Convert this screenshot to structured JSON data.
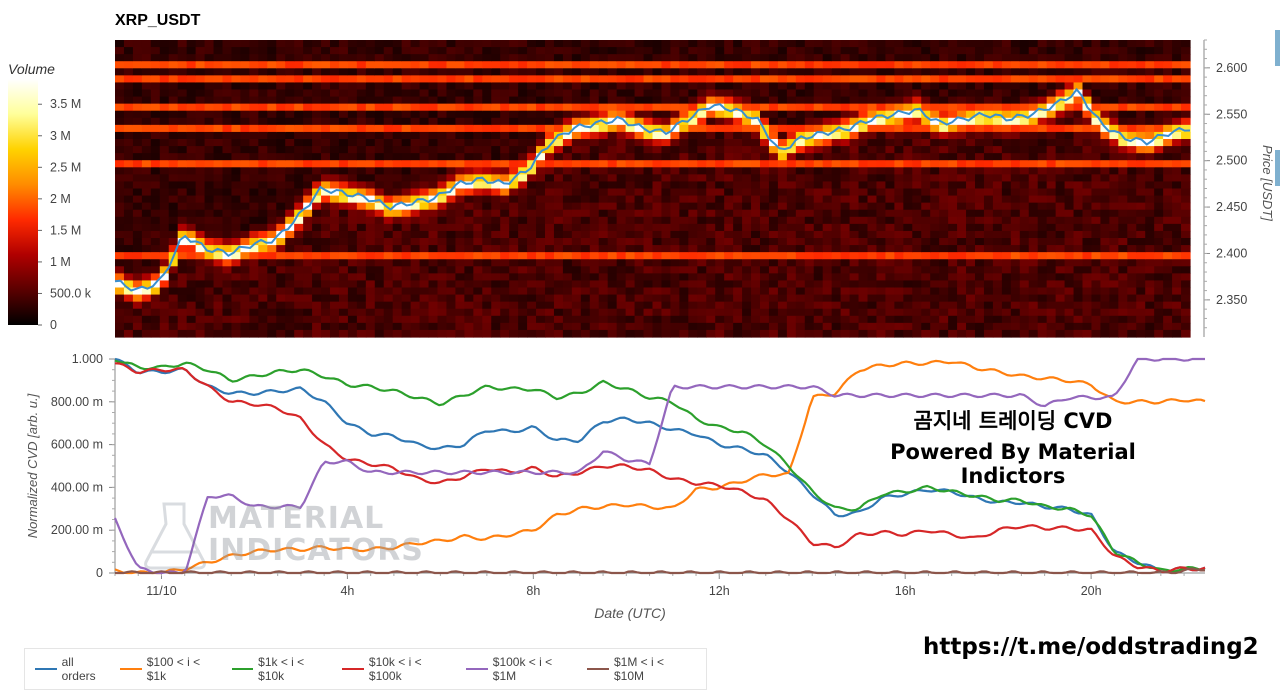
{
  "title": "XRP_USDT",
  "overlay": {
    "line1": "곰지네 트레이딩 CVD",
    "line2": "Powered By Material Indictors"
  },
  "link": "https://t.me/oddstrading2",
  "watermark": [
    "MATERIAL",
    "INDICATORS"
  ],
  "chart_data": [
    {
      "type": "heatmap",
      "title": "XRP_USDT",
      "colorbar": {
        "label": "Volume",
        "ticks": [
          "3.5 M",
          "3 M",
          "2.5 M",
          "2 M",
          "1.5 M",
          "1 M",
          "500.0 k",
          "0"
        ],
        "tick_values": [
          3500000,
          3000000,
          2500000,
          2000000,
          1500000,
          1000000,
          500000,
          0
        ],
        "range": [
          0,
          3900000
        ],
        "colors": [
          "#000000",
          "#5a0000",
          "#b00000",
          "#ff2a00",
          "#ff8c00",
          "#ffd200",
          "#ffff9a",
          "#ffffff"
        ]
      },
      "ylabel": "Price [USDT]",
      "yticks": [
        "2.600",
        "2.550",
        "2.500",
        "2.450",
        "2.400",
        "2.350"
      ],
      "ytick_values": [
        2.6,
        2.55,
        2.5,
        2.45,
        2.4,
        2.35
      ],
      "ylim": [
        2.31,
        2.63
      ],
      "xlim": [
        0,
        23.45
      ],
      "price_line": {
        "color": "#3a8fd0",
        "x": [
          0,
          0.5,
          1,
          1.5,
          2,
          2.5,
          3,
          3.5,
          4,
          4.5,
          5,
          5.5,
          6,
          6.5,
          7,
          7.5,
          8,
          8.5,
          9,
          9.5,
          10,
          10.5,
          11,
          11.5,
          12,
          12.5,
          13,
          13.5,
          14,
          14.5,
          15,
          15.5,
          16,
          16.5,
          17,
          17.5,
          18,
          18.5,
          19,
          19.5,
          20,
          20.5,
          21,
          21.5,
          22,
          22.5,
          23,
          23.45
        ],
        "y": [
          2.37,
          2.36,
          2.37,
          2.42,
          2.405,
          2.4,
          2.41,
          2.415,
          2.44,
          2.47,
          2.465,
          2.46,
          2.45,
          2.455,
          2.46,
          2.475,
          2.48,
          2.475,
          2.49,
          2.52,
          2.535,
          2.54,
          2.545,
          2.535,
          2.53,
          2.545,
          2.56,
          2.555,
          2.545,
          2.51,
          2.525,
          2.53,
          2.535,
          2.545,
          2.55,
          2.555,
          2.54,
          2.545,
          2.55,
          2.545,
          2.55,
          2.56,
          2.575,
          2.54,
          2.525,
          2.52,
          2.53,
          2.535
        ]
      },
      "strong_levels": [
        2.6,
        2.585,
        2.56,
        2.535,
        2.5,
        2.4
      ]
    },
    {
      "type": "line",
      "ylabel": "Normalized CVD [arb. u.]",
      "xlabel": "Date (UTC)",
      "categories_label": [
        "11/10",
        "4h",
        "8h",
        "12h",
        "16h",
        "20h"
      ],
      "xtick_values": [
        1,
        5,
        9,
        13,
        17,
        21
      ],
      "xlim": [
        0,
        23.45
      ],
      "yticks": [
        "1.000",
        "800.00 m",
        "600.00 m",
        "400.00 m",
        "200.00 m",
        "0"
      ],
      "ytick_values": [
        1.0,
        0.8,
        0.6,
        0.4,
        0.2,
        0
      ],
      "ylim": [
        0,
        1.0
      ],
      "x": [
        0,
        0.5,
        1,
        1.5,
        2,
        2.5,
        3,
        3.5,
        4,
        4.5,
        5,
        5.5,
        6,
        6.5,
        7,
        7.5,
        8,
        8.5,
        9,
        9.5,
        10,
        10.5,
        11,
        11.5,
        12,
        12.5,
        13,
        13.5,
        14,
        14.5,
        15,
        15.5,
        16,
        16.5,
        17,
        17.5,
        18,
        18.5,
        19,
        19.5,
        20,
        20.5,
        21,
        21.5,
        22,
        22.5,
        23,
        23.45
      ],
      "series": [
        {
          "name": "all orders",
          "color": "#2f77b4",
          "values": [
            1.0,
            0.94,
            0.94,
            0.95,
            0.87,
            0.84,
            0.84,
            0.85,
            0.86,
            0.8,
            0.7,
            0.65,
            0.64,
            0.6,
            0.58,
            0.6,
            0.67,
            0.66,
            0.68,
            0.62,
            0.62,
            0.71,
            0.72,
            0.7,
            0.67,
            0.65,
            0.6,
            0.58,
            0.55,
            0.47,
            0.37,
            0.27,
            0.28,
            0.35,
            0.37,
            0.39,
            0.38,
            0.35,
            0.33,
            0.33,
            0.31,
            0.3,
            0.27,
            0.1,
            0.05,
            0.01,
            0.02,
            0.02
          ]
        },
        {
          "name": "$100 < i < $1k",
          "color": "#ff7f0e",
          "values": [
            0.01,
            0.0,
            0.0,
            0.02,
            0.05,
            0.08,
            0.1,
            0.11,
            0.11,
            0.12,
            0.11,
            0.11,
            0.12,
            0.14,
            0.15,
            0.17,
            0.16,
            0.18,
            0.2,
            0.27,
            0.3,
            0.31,
            0.32,
            0.31,
            0.3,
            0.39,
            0.4,
            0.43,
            0.46,
            0.46,
            0.82,
            0.84,
            0.95,
            0.97,
            0.98,
            0.98,
            0.99,
            0.96,
            0.94,
            0.92,
            0.91,
            0.9,
            0.88,
            0.8,
            0.8,
            0.8,
            0.81,
            0.8
          ]
        },
        {
          "name": "$1k < i < $10k",
          "color": "#2ca02c",
          "values": [
            1.0,
            0.96,
            0.96,
            0.98,
            0.95,
            0.9,
            0.92,
            0.94,
            0.95,
            0.92,
            0.88,
            0.87,
            0.85,
            0.82,
            0.79,
            0.83,
            0.87,
            0.86,
            0.86,
            0.82,
            0.84,
            0.89,
            0.86,
            0.82,
            0.8,
            0.72,
            0.68,
            0.66,
            0.6,
            0.5,
            0.38,
            0.3,
            0.3,
            0.37,
            0.38,
            0.4,
            0.38,
            0.36,
            0.34,
            0.34,
            0.31,
            0.3,
            0.27,
            0.1,
            0.05,
            0.01,
            0.02,
            0.02
          ]
        },
        {
          "name": "$10k < i < $100k",
          "color": "#d62728",
          "values": [
            0.98,
            0.94,
            0.95,
            0.95,
            0.87,
            0.8,
            0.79,
            0.77,
            0.72,
            0.6,
            0.53,
            0.51,
            0.49,
            0.44,
            0.42,
            0.45,
            0.49,
            0.47,
            0.49,
            0.45,
            0.47,
            0.5,
            0.5,
            0.48,
            0.44,
            0.42,
            0.41,
            0.38,
            0.34,
            0.25,
            0.14,
            0.12,
            0.18,
            0.19,
            0.18,
            0.2,
            0.18,
            0.16,
            0.2,
            0.22,
            0.21,
            0.21,
            0.2,
            0.08,
            0.03,
            0.01,
            0.02,
            0.02
          ]
        },
        {
          "name": "$100k < i < $1M",
          "color": "#9467bd",
          "values": [
            0.25,
            0.02,
            0.0,
            0.0,
            0.36,
            0.36,
            0.31,
            0.31,
            0.31,
            0.52,
            0.52,
            0.47,
            0.47,
            0.47,
            0.47,
            0.47,
            0.47,
            0.47,
            0.47,
            0.47,
            0.47,
            0.57,
            0.53,
            0.51,
            0.87,
            0.87,
            0.87,
            0.87,
            0.87,
            0.87,
            0.87,
            0.83,
            0.83,
            0.83,
            0.83,
            0.83,
            0.83,
            0.83,
            0.83,
            0.83,
            0.78,
            0.82,
            0.82,
            0.82,
            1.0,
            1.0,
            1.0,
            1.0
          ]
        },
        {
          "name": "$1M < i < $10M",
          "color": "#8c564b",
          "values": [
            0.0,
            0.0,
            0.0,
            0.0,
            0.0,
            0.0,
            0.0,
            0.0,
            0.0,
            0.0,
            0.0,
            0.0,
            0.0,
            0.0,
            0.0,
            0.0,
            0.0,
            0.0,
            0.0,
            0.0,
            0.0,
            0.0,
            0.0,
            0.0,
            0.0,
            0.0,
            0.0,
            0.0,
            0.0,
            0.0,
            0.0,
            0.0,
            0.0,
            0.0,
            0.0,
            0.0,
            0.0,
            0.0,
            0.0,
            0.0,
            0.0,
            0.0,
            0.0,
            0.0,
            0.0,
            0.0,
            0.01,
            0.02
          ]
        }
      ]
    }
  ]
}
